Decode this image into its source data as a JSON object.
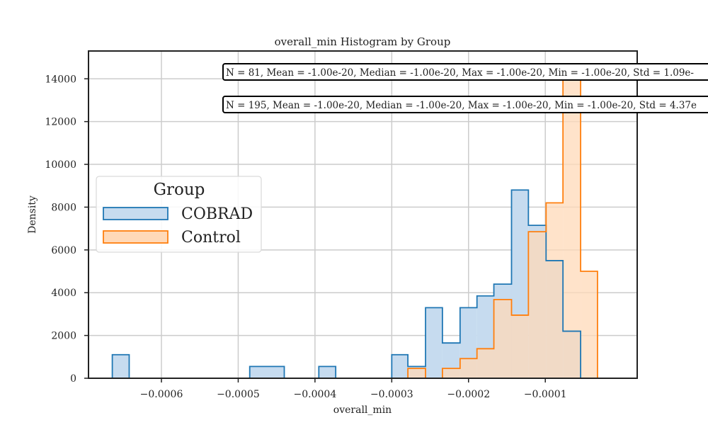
{
  "chart_data": {
    "type": "histogram",
    "title": "overall_min Histogram by Group",
    "xlabel": "overall_min",
    "ylabel": "Density",
    "xlim": [
      -0.000695,
      1.97e-05
    ],
    "ylim": [
      0,
      15300
    ],
    "x_ticks": [
      -0.0006,
      -0.0005,
      -0.0004,
      -0.0003,
      -0.0002,
      -0.0001
    ],
    "x_tick_labels": [
      "−0.0006",
      "−0.0005",
      "−0.0004",
      "−0.0003",
      "−0.0002",
      "−0.0001"
    ],
    "y_ticks": [
      0,
      2000,
      4000,
      6000,
      8000,
      10000,
      12000,
      14000
    ],
    "y_tick_labels": [
      "0",
      "2000",
      "4000",
      "6000",
      "8000",
      "10000",
      "12000",
      "14000"
    ],
    "grid": true,
    "legend": {
      "title": "Group",
      "placement": "center-left"
    },
    "series": [
      {
        "name": "COBRAD",
        "color": "#1f77b4",
        "fill": "#c6dbef",
        "bins": [
          {
            "x0": -0.000664,
            "x1": -0.000642,
            "value": 1100
          },
          {
            "x0": -0.000642,
            "x1": -0.000485,
            "value": 0
          },
          {
            "x0": -0.000485,
            "x1": -0.00044,
            "value": 550
          },
          {
            "x0": -0.00044,
            "x1": -0.000395,
            "value": 0
          },
          {
            "x0": -0.000395,
            "x1": -0.000373,
            "value": 550
          },
          {
            "x0": -0.000373,
            "x1": -0.0003,
            "value": 0
          },
          {
            "x0": -0.0003,
            "x1": -0.000279,
            "value": 1100
          },
          {
            "x0": -0.000279,
            "x1": -0.000256,
            "value": 550
          },
          {
            "x0": -0.000256,
            "x1": -0.000234,
            "value": 3300
          },
          {
            "x0": -0.000234,
            "x1": -0.000211,
            "value": 1650
          },
          {
            "x0": -0.000211,
            "x1": -0.000189,
            "value": 3300
          },
          {
            "x0": -0.000189,
            "x1": -0.000167,
            "value": 3850
          },
          {
            "x0": -0.000167,
            "x1": -0.000144,
            "value": 4400
          },
          {
            "x0": -0.000144,
            "x1": -0.000122,
            "value": 8800
          },
          {
            "x0": -0.000122,
            "x1": -9.9e-05,
            "value": 7150
          },
          {
            "x0": -9.9e-05,
            "x1": -7.7e-05,
            "value": 5500
          },
          {
            "x0": -7.7e-05,
            "x1": -5.4e-05,
            "value": 2200
          }
        ]
      },
      {
        "name": "Control",
        "color": "#ff7f0e",
        "fill": "#ffd9b8",
        "bins": [
          {
            "x0": -0.000279,
            "x1": -0.000256,
            "value": 460
          },
          {
            "x0": -0.000256,
            "x1": -0.000234,
            "value": 0
          },
          {
            "x0": -0.000234,
            "x1": -0.000211,
            "value": 460
          },
          {
            "x0": -0.000211,
            "x1": -0.000189,
            "value": 920
          },
          {
            "x0": -0.000189,
            "x1": -0.000167,
            "value": 1380
          },
          {
            "x0": -0.000167,
            "x1": -0.000144,
            "value": 3680
          },
          {
            "x0": -0.000144,
            "x1": -0.000122,
            "value": 2950
          },
          {
            "x0": -0.000122,
            "x1": -9.9e-05,
            "value": 6850
          },
          {
            "x0": -9.9e-05,
            "x1": -7.7e-05,
            "value": 8200
          },
          {
            "x0": -7.7e-05,
            "x1": -5.4e-05,
            "value": 14300
          },
          {
            "x0": -5.4e-05,
            "x1": -3.2e-05,
            "value": 5000
          }
        ]
      }
    ],
    "annotations": [
      "N = 81, Mean = -1.00e-20, Median = -1.00e-20, Max = -1.00e-20, Min = -1.00e-20, Std = 1.09e-",
      "N = 195, Mean = -1.00e-20, Median = -1.00e-20, Max = -1.00e-20, Min = -1.00e-20, Std = 4.37e"
    ]
  }
}
